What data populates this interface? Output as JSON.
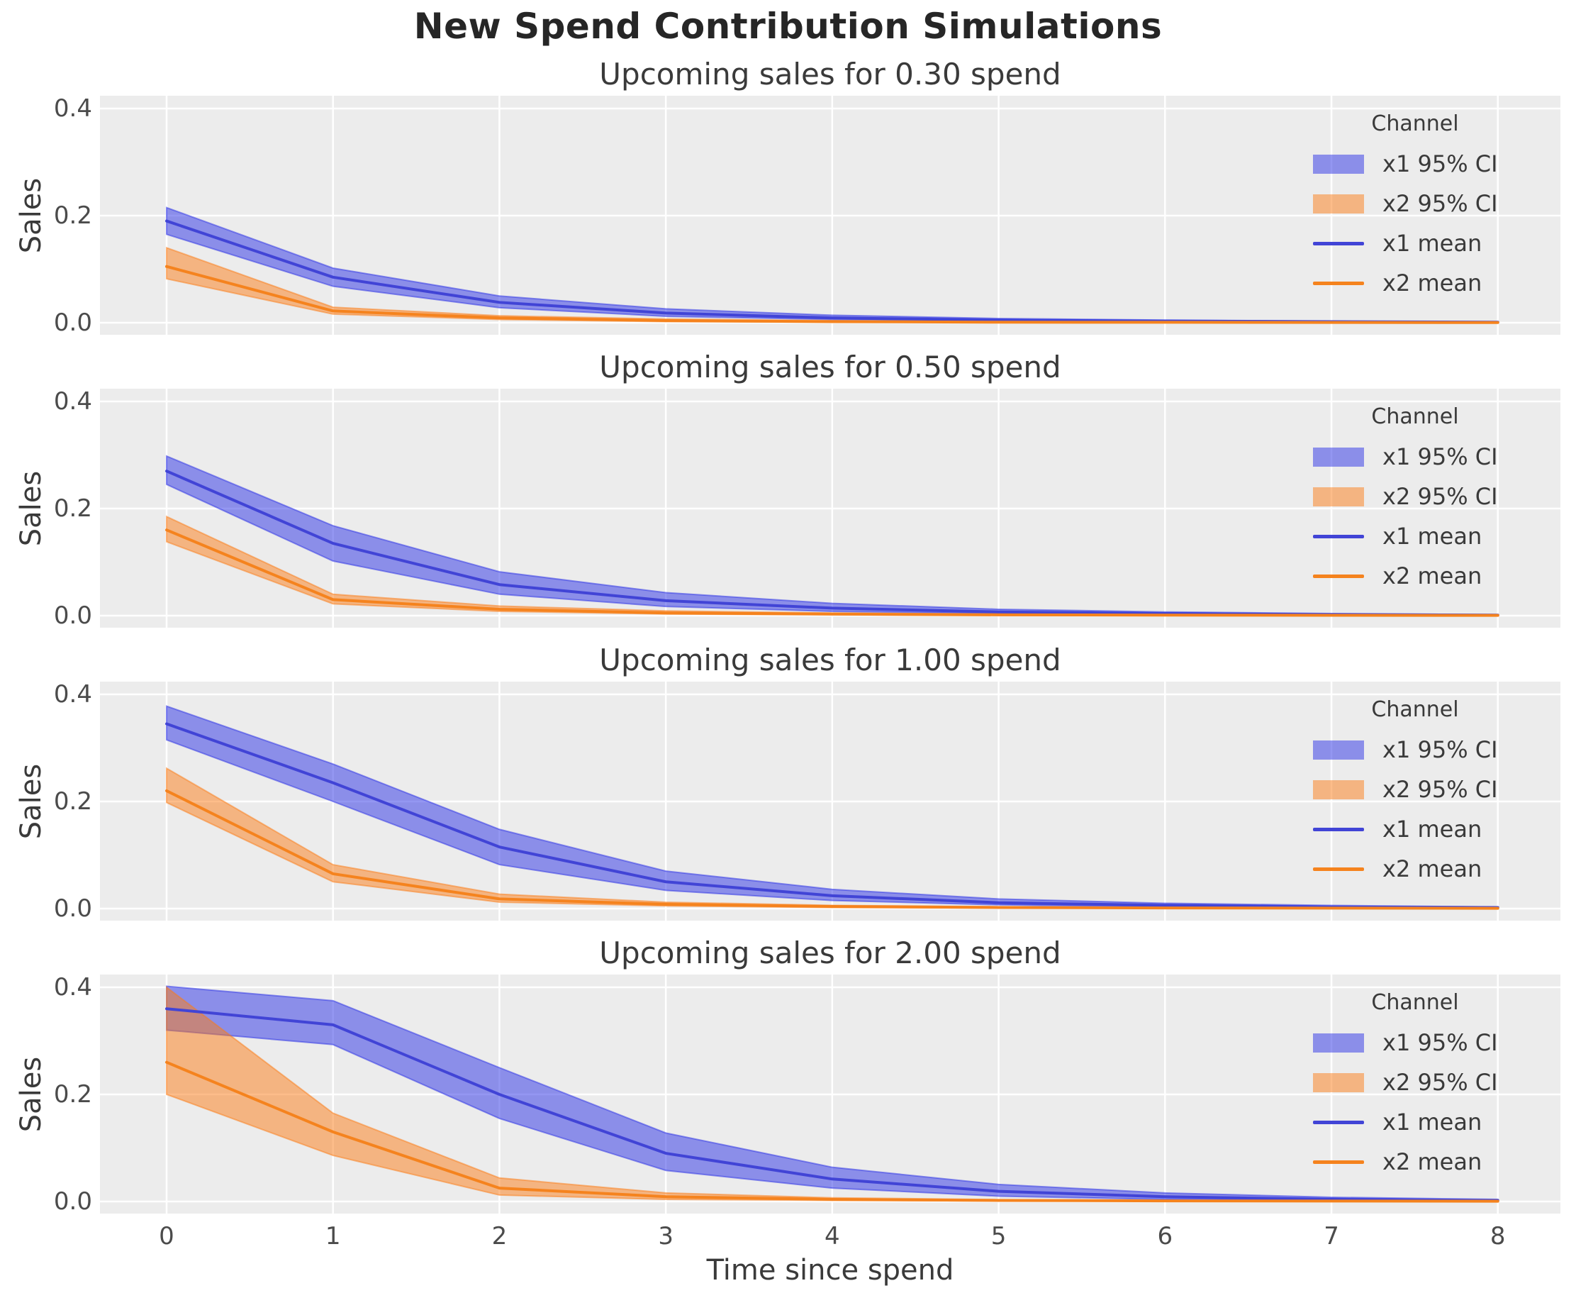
{
  "title": "New Spend Contribution Simulations",
  "xlabel": "Time since spend",
  "ylabel": "Sales",
  "x_ticks": [
    0,
    1,
    2,
    3,
    4,
    5,
    6,
    7,
    8
  ],
  "y_ticks": [
    "0.0",
    "0.2",
    "0.4"
  ],
  "colors": {
    "x1_line": "#4144d6",
    "x1_band": "rgba(42,48,230,0.5)",
    "x2_line": "#f5831e",
    "x2_band": "rgba(252,124,22,0.5)",
    "grid": "#ffffff",
    "panel_bg": "#ececec",
    "figure_bg": "#ffffff",
    "title_text": "#262626",
    "label_text": "#3a3a3a",
    "tick_text": "#4b4b4b"
  },
  "legend": {
    "title": "Channel",
    "position": "upper right",
    "entries": [
      {
        "label": "x1 95% CI",
        "swatch": "patch",
        "color_key": "x1_band"
      },
      {
        "label": "x2 95% CI",
        "swatch": "patch",
        "color_key": "x2_band"
      },
      {
        "label": "x1 mean",
        "swatch": "line",
        "color_key": "x1_line"
      },
      {
        "label": "x2 mean",
        "swatch": "line",
        "color_key": "x2_line"
      }
    ]
  },
  "chart_data": [
    {
      "type": "line",
      "title": "Upcoming sales for 0.30 spend",
      "x": [
        0,
        1,
        2,
        3,
        4,
        5,
        6,
        7,
        8
      ],
      "xlim": [
        -0.4,
        8.4
      ],
      "ylim": [
        -0.022,
        0.424
      ],
      "grid": true,
      "series": [
        {
          "name": "x1 mean",
          "values": [
            0.19,
            0.085,
            0.038,
            0.018,
            0.009,
            0.005,
            0.003,
            0.002,
            0.001
          ]
        },
        {
          "name": "x1 95% CI",
          "low": [
            0.165,
            0.068,
            0.028,
            0.012,
            0.006,
            0.003,
            0.002,
            0.001,
            0.0007
          ],
          "high": [
            0.215,
            0.102,
            0.05,
            0.026,
            0.014,
            0.008,
            0.005,
            0.003,
            0.002
          ]
        },
        {
          "name": "x2 mean",
          "values": [
            0.105,
            0.022,
            0.009,
            0.004,
            0.002,
            0.001,
            0.0008,
            0.0005,
            0.0003
          ]
        },
        {
          "name": "x2 95% CI",
          "low": [
            0.082,
            0.016,
            0.006,
            0.002,
            0.001,
            0.0006,
            0.0004,
            0.0003,
            0.0002
          ],
          "high": [
            0.14,
            0.029,
            0.013,
            0.007,
            0.004,
            0.002,
            0.0014,
            0.001,
            0.0007
          ]
        }
      ]
    },
    {
      "type": "line",
      "title": "Upcoming sales for 0.50 spend",
      "x": [
        0,
        1,
        2,
        3,
        4,
        5,
        6,
        7,
        8
      ],
      "xlim": [
        -0.4,
        8.4
      ],
      "ylim": [
        -0.022,
        0.424
      ],
      "grid": true,
      "series": [
        {
          "name": "x1 mean",
          "values": [
            0.27,
            0.135,
            0.058,
            0.028,
            0.014,
            0.007,
            0.004,
            0.002,
            0.001
          ]
        },
        {
          "name": "x1 95% CI",
          "low": [
            0.245,
            0.102,
            0.04,
            0.017,
            0.008,
            0.004,
            0.002,
            0.001,
            0.0007
          ],
          "high": [
            0.298,
            0.168,
            0.082,
            0.043,
            0.023,
            0.012,
            0.007,
            0.004,
            0.002
          ]
        },
        {
          "name": "x2 mean",
          "values": [
            0.16,
            0.03,
            0.012,
            0.005,
            0.003,
            0.0015,
            0.001,
            0.0007,
            0.0005
          ]
        },
        {
          "name": "x2 95% CI",
          "low": [
            0.138,
            0.022,
            0.008,
            0.003,
            0.0015,
            0.0008,
            0.0005,
            0.0003,
            0.0002
          ],
          "high": [
            0.185,
            0.04,
            0.018,
            0.009,
            0.005,
            0.003,
            0.0017,
            0.0012,
            0.0008
          ]
        }
      ]
    },
    {
      "type": "line",
      "title": "Upcoming sales for 1.00 spend",
      "x": [
        0,
        1,
        2,
        3,
        4,
        5,
        6,
        7,
        8
      ],
      "xlim": [
        -0.4,
        8.4
      ],
      "ylim": [
        -0.022,
        0.424
      ],
      "grid": true,
      "series": [
        {
          "name": "x1 mean",
          "values": [
            0.345,
            0.235,
            0.115,
            0.05,
            0.024,
            0.011,
            0.006,
            0.003,
            0.002
          ]
        },
        {
          "name": "x1 95% CI",
          "low": [
            0.315,
            0.2,
            0.082,
            0.034,
            0.015,
            0.007,
            0.003,
            0.002,
            0.001
          ],
          "high": [
            0.378,
            0.27,
            0.148,
            0.07,
            0.036,
            0.018,
            0.01,
            0.006,
            0.003
          ]
        },
        {
          "name": "x2 mean",
          "values": [
            0.22,
            0.065,
            0.018,
            0.008,
            0.004,
            0.002,
            0.0012,
            0.0008,
            0.0005
          ]
        },
        {
          "name": "x2 95% CI",
          "low": [
            0.198,
            0.05,
            0.012,
            0.005,
            0.002,
            0.001,
            0.0006,
            0.0004,
            0.0003
          ],
          "high": [
            0.262,
            0.082,
            0.027,
            0.012,
            0.006,
            0.0035,
            0.002,
            0.0013,
            0.0008
          ]
        }
      ]
    },
    {
      "type": "line",
      "title": "Upcoming sales for 2.00 spend",
      "x": [
        0,
        1,
        2,
        3,
        4,
        5,
        6,
        7,
        8
      ],
      "xlim": [
        -0.4,
        8.4
      ],
      "ylim": [
        -0.022,
        0.424
      ],
      "grid": true,
      "series": [
        {
          "name": "x1 mean",
          "values": [
            0.36,
            0.33,
            0.2,
            0.09,
            0.042,
            0.019,
            0.009,
            0.004,
            0.002
          ]
        },
        {
          "name": "x1 95% CI",
          "low": [
            0.32,
            0.293,
            0.155,
            0.058,
            0.025,
            0.01,
            0.004,
            0.002,
            0.001
          ],
          "high": [
            0.402,
            0.375,
            0.25,
            0.128,
            0.064,
            0.032,
            0.016,
            0.008,
            0.004
          ]
        },
        {
          "name": "x2 mean",
          "values": [
            0.26,
            0.13,
            0.025,
            0.009,
            0.004,
            0.002,
            0.0012,
            0.0008,
            0.0005
          ]
        },
        {
          "name": "x2 95% CI",
          "low": [
            0.2,
            0.086,
            0.012,
            0.004,
            0.002,
            0.001,
            0.0006,
            0.0004,
            0.0002
          ],
          "high": [
            0.4,
            0.165,
            0.044,
            0.016,
            0.007,
            0.0035,
            0.002,
            0.0012,
            0.0007
          ]
        }
      ]
    }
  ]
}
